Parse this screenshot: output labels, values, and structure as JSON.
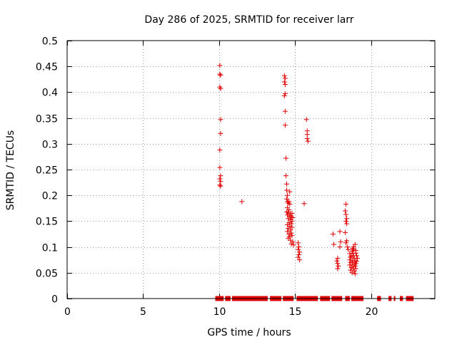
{
  "chart_data": {
    "type": "scatter",
    "title": "Day 286 of 2025, SRMTID for receiver larr",
    "xlabel": "GPS time / hours",
    "ylabel": "SRMTID / TECUs",
    "xlim": [
      0,
      24.2
    ],
    "ylim": [
      0,
      0.5
    ],
    "x_ticks": [
      0,
      5,
      10,
      15,
      20
    ],
    "x_tick_labels": [
      "0",
      "5",
      "10",
      "15",
      "20"
    ],
    "y_ticks": [
      0,
      0.05,
      0.1,
      0.15,
      0.2,
      0.25,
      0.3,
      0.35,
      0.4,
      0.45,
      0.5
    ],
    "y_tick_labels": [
      "0",
      "0.05",
      "0.1",
      "0.15",
      "0.2",
      "0.25",
      "0.3",
      "0.35",
      "0.4",
      "0.45",
      "0.5"
    ],
    "grid": true,
    "marker": "+",
    "marker_color": "#e00000",
    "series": [
      {
        "name": "SRMTID",
        "points": [
          [
            10.05,
            0.452
          ],
          [
            10.05,
            0.435
          ],
          [
            10.1,
            0.433
          ],
          [
            10.05,
            0.41
          ],
          [
            10.1,
            0.407
          ],
          [
            10.1,
            0.347
          ],
          [
            10.1,
            0.32
          ],
          [
            10.05,
            0.288
          ],
          [
            10.05,
            0.254
          ],
          [
            10.1,
            0.238
          ],
          [
            10.05,
            0.232
          ],
          [
            10.1,
            0.227
          ],
          [
            10.05,
            0.22
          ],
          [
            10.1,
            0.218
          ],
          [
            11.5,
            0.188
          ],
          [
            14.3,
            0.432
          ],
          [
            14.35,
            0.427
          ],
          [
            14.3,
            0.42
          ],
          [
            14.35,
            0.415
          ],
          [
            14.35,
            0.397
          ],
          [
            14.3,
            0.393
          ],
          [
            14.35,
            0.363
          ],
          [
            14.35,
            0.336
          ],
          [
            14.4,
            0.272
          ],
          [
            14.4,
            0.238
          ],
          [
            14.45,
            0.222
          ],
          [
            14.45,
            0.21
          ],
          [
            14.65,
            0.207
          ],
          [
            14.5,
            0.2
          ],
          [
            14.45,
            0.193
          ],
          [
            14.5,
            0.188
          ],
          [
            14.6,
            0.188
          ],
          [
            14.55,
            0.185
          ],
          [
            14.65,
            0.183
          ],
          [
            14.5,
            0.176
          ],
          [
            14.6,
            0.172
          ],
          [
            14.45,
            0.168
          ],
          [
            14.55,
            0.167
          ],
          [
            14.7,
            0.165
          ],
          [
            14.8,
            0.165
          ],
          [
            14.5,
            0.162
          ],
          [
            14.65,
            0.16
          ],
          [
            14.75,
            0.158
          ],
          [
            14.85,
            0.157
          ],
          [
            14.55,
            0.155
          ],
          [
            14.7,
            0.153
          ],
          [
            14.8,
            0.15
          ],
          [
            14.6,
            0.147
          ],
          [
            14.75,
            0.145
          ],
          [
            14.5,
            0.143
          ],
          [
            14.65,
            0.14
          ],
          [
            14.8,
            0.138
          ],
          [
            14.55,
            0.136
          ],
          [
            14.7,
            0.133
          ],
          [
            14.5,
            0.13
          ],
          [
            14.75,
            0.127
          ],
          [
            14.6,
            0.125
          ],
          [
            14.8,
            0.122
          ],
          [
            14.65,
            0.12
          ],
          [
            14.55,
            0.117
          ],
          [
            14.7,
            0.113
          ],
          [
            14.85,
            0.11
          ],
          [
            14.75,
            0.106
          ],
          [
            14.9,
            0.104
          ],
          [
            15.2,
            0.108
          ],
          [
            15.25,
            0.1
          ],
          [
            15.2,
            0.095
          ],
          [
            15.3,
            0.09
          ],
          [
            15.25,
            0.085
          ],
          [
            15.2,
            0.08
          ],
          [
            15.3,
            0.075
          ],
          [
            15.6,
            0.184
          ],
          [
            15.75,
            0.347
          ],
          [
            15.8,
            0.325
          ],
          [
            15.8,
            0.318
          ],
          [
            15.8,
            0.31
          ],
          [
            15.85,
            0.305
          ],
          [
            17.5,
            0.125
          ],
          [
            17.55,
            0.105
          ],
          [
            17.8,
            0.078
          ],
          [
            17.75,
            0.073
          ],
          [
            17.8,
            0.068
          ],
          [
            17.85,
            0.063
          ],
          [
            17.8,
            0.058
          ],
          [
            17.95,
            0.13
          ],
          [
            18.0,
            0.11
          ],
          [
            17.95,
            0.1
          ],
          [
            18.35,
            0.183
          ],
          [
            18.3,
            0.17
          ],
          [
            18.35,
            0.163
          ],
          [
            18.4,
            0.155
          ],
          [
            18.35,
            0.15
          ],
          [
            18.4,
            0.145
          ],
          [
            18.3,
            0.128
          ],
          [
            18.4,
            0.112
          ],
          [
            18.35,
            0.108
          ],
          [
            18.45,
            0.1
          ],
          [
            18.5,
            0.095
          ],
          [
            18.6,
            0.087
          ],
          [
            18.65,
            0.08
          ],
          [
            18.6,
            0.075
          ],
          [
            18.65,
            0.07
          ],
          [
            18.6,
            0.065
          ],
          [
            18.7,
            0.06
          ],
          [
            18.65,
            0.055
          ],
          [
            18.75,
            0.05
          ],
          [
            18.75,
            0.092
          ],
          [
            18.8,
            0.088
          ],
          [
            18.85,
            0.083
          ],
          [
            18.9,
            0.078
          ],
          [
            18.95,
            0.073
          ],
          [
            19.0,
            0.068
          ],
          [
            18.8,
            0.063
          ],
          [
            18.85,
            0.058
          ],
          [
            18.9,
            0.053
          ],
          [
            18.95,
            0.048
          ],
          [
            19.0,
            0.088
          ],
          [
            18.85,
            0.095
          ],
          [
            18.8,
            0.073
          ],
          [
            18.95,
            0.063
          ],
          [
            19.05,
            0.083
          ],
          [
            19.0,
            0.058
          ],
          [
            18.9,
            0.066
          ],
          [
            18.75,
            0.07
          ],
          [
            18.95,
            0.105
          ],
          [
            18.85,
            0.1
          ],
          [
            19.05,
            0.072
          ],
          [
            19.1,
            0.078
          ],
          [
            18.7,
            0.082
          ],
          [
            18.8,
            0.097
          ],
          [
            19.0,
            0.093
          ]
        ]
      }
    ],
    "zero_segments": [
      [
        9.75,
        10.3
      ],
      [
        10.4,
        10.75
      ],
      [
        10.85,
        13.2
      ],
      [
        13.35,
        14.1
      ],
      [
        14.2,
        14.9
      ],
      [
        15.1,
        16.5
      ],
      [
        16.65,
        17.3
      ],
      [
        17.4,
        18.1
      ],
      [
        18.3,
        18.6
      ],
      [
        18.7,
        19.5
      ],
      [
        20.4,
        20.65
      ],
      [
        21.15,
        21.35
      ],
      [
        21.5,
        21.6
      ],
      [
        21.9,
        22.1
      ],
      [
        22.3,
        22.8
      ]
    ]
  }
}
